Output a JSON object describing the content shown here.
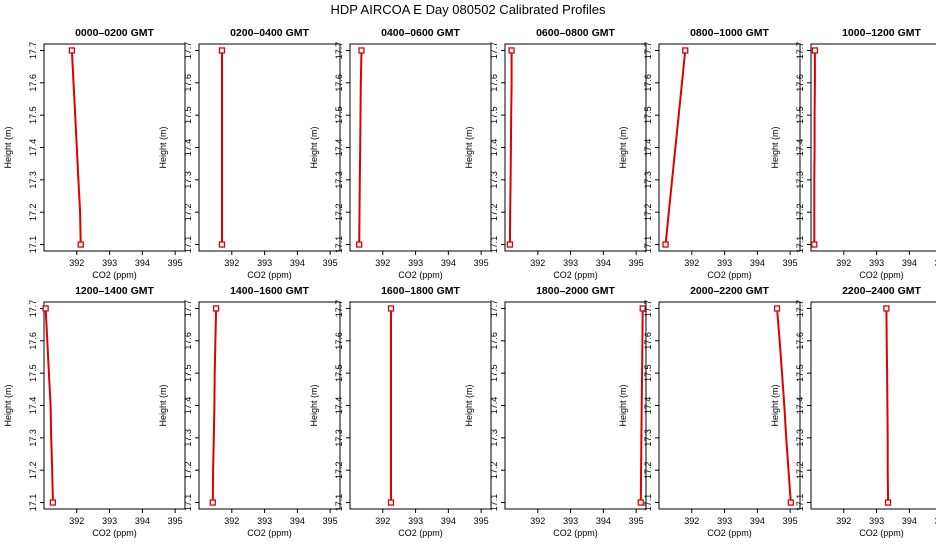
{
  "page": {
    "title": "HDP  AIRCOA E  Day 080502  Calibrated Profiles"
  },
  "axes_common": {
    "xlabel": "CO2 (ppm)",
    "ylabel": "Height (m)",
    "xticks": [
      "392",
      "393",
      "394",
      "395"
    ],
    "yticks": [
      "17.1",
      "17.2",
      "17.3",
      "17.4",
      "17.5",
      "17.6",
      "17.7"
    ]
  },
  "colors": {
    "profile_line": "#dd0000",
    "axes": "#000000"
  },
  "chart_data": [
    {
      "type": "line",
      "title": "0000–0200 GMT",
      "xlabel": "CO2 (ppm)",
      "ylabel": "Height (m)",
      "xlim": [
        391.0,
        395.3
      ],
      "ylim": [
        17.08,
        17.72
      ],
      "grid": false,
      "series": [
        {
          "points": [
            [
              391.85,
              17.7
            ],
            [
              391.9,
              17.6
            ],
            [
              391.95,
              17.5
            ],
            [
              392.0,
              17.4
            ],
            [
              392.05,
              17.3
            ],
            [
              392.1,
              17.2
            ],
            [
              392.12,
              17.1
            ]
          ]
        }
      ]
    },
    {
      "type": "line",
      "title": "0200–0400 GMT",
      "xlabel": "CO2 (ppm)",
      "ylabel": "Height (m)",
      "xlim": [
        391.0,
        395.3
      ],
      "ylim": [
        17.08,
        17.72
      ],
      "grid": false,
      "series": [
        {
          "points": [
            [
              391.7,
              17.7
            ],
            [
              391.7,
              17.6
            ],
            [
              391.7,
              17.5
            ],
            [
              391.7,
              17.4
            ],
            [
              391.7,
              17.3
            ],
            [
              391.7,
              17.2
            ],
            [
              391.7,
              17.1
            ]
          ]
        }
      ]
    },
    {
      "type": "line",
      "title": "0400–0600 GMT",
      "xlabel": "CO2 (ppm)",
      "ylabel": "Height (m)",
      "xlim": [
        391.0,
        395.3
      ],
      "ylim": [
        17.08,
        17.72
      ],
      "grid": false,
      "series": [
        {
          "points": [
            [
              391.35,
              17.7
            ],
            [
              391.33,
              17.6
            ],
            [
              391.32,
              17.5
            ],
            [
              391.31,
              17.4
            ],
            [
              391.3,
              17.3
            ],
            [
              391.29,
              17.2
            ],
            [
              391.28,
              17.1
            ]
          ]
        }
      ]
    },
    {
      "type": "line",
      "title": "0600–0800 GMT",
      "xlabel": "CO2 (ppm)",
      "ylabel": "Height (m)",
      "xlim": [
        391.0,
        395.3
      ],
      "ylim": [
        17.08,
        17.72
      ],
      "grid": false,
      "series": [
        {
          "points": [
            [
              391.2,
              17.7
            ],
            [
              391.2,
              17.6
            ],
            [
              391.19,
              17.5
            ],
            [
              391.18,
              17.4
            ],
            [
              391.17,
              17.3
            ],
            [
              391.16,
              17.2
            ],
            [
              391.15,
              17.1
            ]
          ]
        }
      ]
    },
    {
      "type": "line",
      "title": "0800–1000 GMT",
      "xlabel": "CO2 (ppm)",
      "ylabel": "Height (m)",
      "xlim": [
        391.0,
        395.3
      ],
      "ylim": [
        17.08,
        17.72
      ],
      "grid": false,
      "series": [
        {
          "points": [
            [
              391.8,
              17.7
            ],
            [
              391.7,
              17.6
            ],
            [
              391.6,
              17.5
            ],
            [
              391.5,
              17.4
            ],
            [
              391.4,
              17.3
            ],
            [
              391.3,
              17.2
            ],
            [
              391.2,
              17.1
            ]
          ]
        }
      ]
    },
    {
      "type": "line",
      "title": "1000–1200 GMT",
      "xlabel": "CO2 (ppm)",
      "ylabel": "Height (m)",
      "xlim": [
        391.0,
        395.3
      ],
      "ylim": [
        17.08,
        17.72
      ],
      "grid": false,
      "series": [
        {
          "points": [
            [
              391.12,
              17.7
            ],
            [
              391.12,
              17.6
            ],
            [
              391.11,
              17.5
            ],
            [
              391.11,
              17.4
            ],
            [
              391.1,
              17.3
            ],
            [
              391.1,
              17.2
            ],
            [
              391.1,
              17.1
            ]
          ]
        }
      ]
    },
    {
      "type": "line",
      "title": "1200–1400 GMT",
      "xlabel": "CO2 (ppm)",
      "ylabel": "Height (m)",
      "xlim": [
        391.0,
        395.3
      ],
      "ylim": [
        17.08,
        17.72
      ],
      "grid": false,
      "series": [
        {
          "points": [
            [
              391.05,
              17.7
            ],
            [
              391.1,
              17.6
            ],
            [
              391.15,
              17.5
            ],
            [
              391.2,
              17.4
            ],
            [
              391.22,
              17.3
            ],
            [
              391.25,
              17.2
            ],
            [
              391.27,
              17.1
            ]
          ]
        }
      ]
    },
    {
      "type": "line",
      "title": "1400–1600 GMT",
      "xlabel": "CO2 (ppm)",
      "ylabel": "Height (m)",
      "xlim": [
        391.0,
        395.3
      ],
      "ylim": [
        17.08,
        17.72
      ],
      "grid": false,
      "series": [
        {
          "points": [
            [
              391.52,
              17.7
            ],
            [
              391.5,
              17.6
            ],
            [
              391.48,
              17.5
            ],
            [
              391.47,
              17.4
            ],
            [
              391.45,
              17.3
            ],
            [
              391.43,
              17.2
            ],
            [
              391.42,
              17.1
            ]
          ]
        }
      ]
    },
    {
      "type": "line",
      "title": "1600–1800 GMT",
      "xlabel": "CO2 (ppm)",
      "ylabel": "Height (m)",
      "xlim": [
        391.0,
        395.3
      ],
      "ylim": [
        17.08,
        17.72
      ],
      "grid": false,
      "series": [
        {
          "points": [
            [
              392.25,
              17.7
            ],
            [
              392.25,
              17.6
            ],
            [
              392.25,
              17.5
            ],
            [
              392.25,
              17.4
            ],
            [
              392.25,
              17.3
            ],
            [
              392.25,
              17.2
            ],
            [
              392.25,
              17.1
            ]
          ]
        }
      ]
    },
    {
      "type": "line",
      "title": "1800–2000 GMT",
      "xlabel": "CO2 (ppm)",
      "ylabel": "Height (m)",
      "xlim": [
        391.0,
        395.3
      ],
      "ylim": [
        17.08,
        17.72
      ],
      "grid": false,
      "series": [
        {
          "points": [
            [
              395.2,
              17.7
            ],
            [
              395.19,
              17.6
            ],
            [
              395.18,
              17.5
            ],
            [
              395.17,
              17.4
            ],
            [
              395.16,
              17.3
            ],
            [
              395.15,
              17.2
            ],
            [
              395.14,
              17.1
            ]
          ]
        }
      ]
    },
    {
      "type": "line",
      "title": "2000–2200 GMT",
      "xlabel": "CO2 (ppm)",
      "ylabel": "Height (m)",
      "xlim": [
        391.0,
        395.3
      ],
      "ylim": [
        17.08,
        17.72
      ],
      "grid": false,
      "series": [
        {
          "points": [
            [
              394.6,
              17.7
            ],
            [
              394.68,
              17.6
            ],
            [
              394.75,
              17.5
            ],
            [
              394.82,
              17.4
            ],
            [
              394.88,
              17.3
            ],
            [
              394.95,
              17.2
            ],
            [
              395.02,
              17.1
            ]
          ]
        }
      ]
    },
    {
      "type": "line",
      "title": "2200–2400 GMT",
      "xlabel": "CO2 (ppm)",
      "ylabel": "Height (m)",
      "xlim": [
        391.0,
        395.3
      ],
      "ylim": [
        17.08,
        17.72
      ],
      "grid": false,
      "series": [
        {
          "points": [
            [
              393.3,
              17.7
            ],
            [
              393.31,
              17.6
            ],
            [
              393.32,
              17.5
            ],
            [
              393.33,
              17.4
            ],
            [
              393.34,
              17.3
            ],
            [
              393.34,
              17.2
            ],
            [
              393.35,
              17.1
            ]
          ]
        }
      ]
    }
  ]
}
